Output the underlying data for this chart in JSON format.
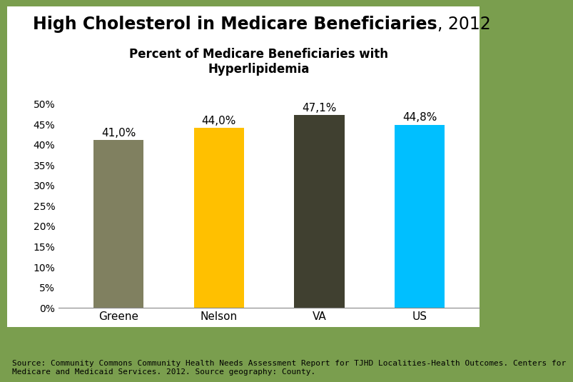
{
  "title_bold": "High Cholesterol in Medicare Beneficiaries",
  "title_normal": ", 2012",
  "subtitle": "Percent of Medicare Beneficiaries with\nHyperlipidemia",
  "categories": [
    "Greene",
    "Nelson",
    "VA",
    "US"
  ],
  "values": [
    41.0,
    44.0,
    47.1,
    44.8
  ],
  "bar_colors": [
    "#808060",
    "#FFC000",
    "#404030",
    "#00BFFF"
  ],
  "bar_labels": [
    "41,0%",
    "44,0%",
    "47,1%",
    "44,8%"
  ],
  "yticks": [
    0,
    5,
    10,
    15,
    20,
    25,
    30,
    35,
    40,
    45,
    50
  ],
  "ylim": [
    0,
    52
  ],
  "background_color": "#7a9e4e",
  "card_color": "#ffffff",
  "source_text": "Source: Community Commons Community Health Needs Assessment Report for TJHD Localities-Health Outcomes. Centers for\nMedicare and Medicaid Services. 2012. Source geography: County.",
  "title_fontsize": 17,
  "subtitle_fontsize": 12,
  "label_fontsize": 11,
  "tick_fontsize": 10,
  "source_fontsize": 8
}
